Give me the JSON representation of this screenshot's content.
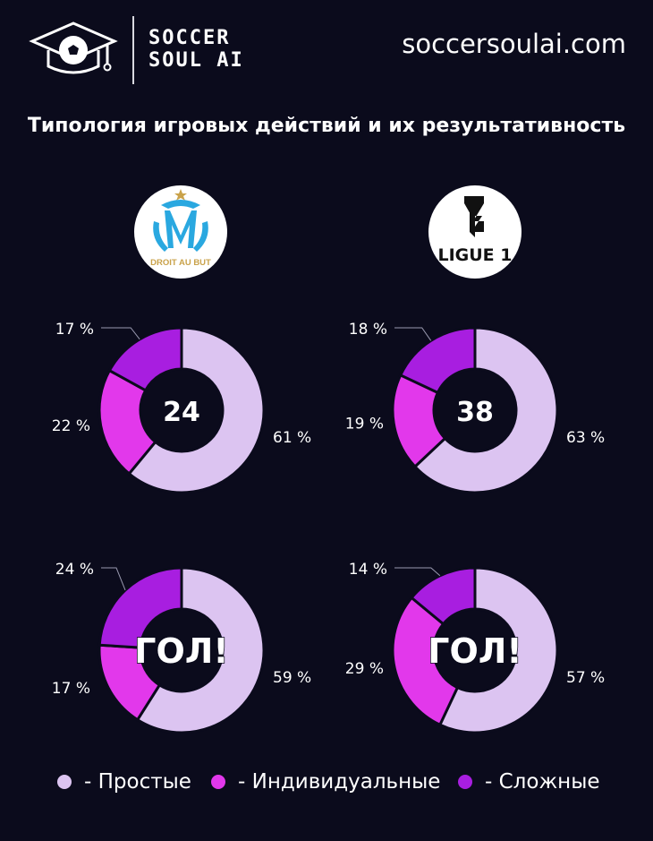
{
  "header": {
    "brand_line1": "SOCCER",
    "brand_line2": "SOUL AI",
    "site": "soccersoulai.com",
    "logo_icon": "graduation-cap-ball-icon"
  },
  "title": "Типология игровых действий и их результативность",
  "teams": [
    {
      "name": "Marseille",
      "badge_icon": "marseille-crest-icon",
      "badge_text": "DROIT AU BUT"
    },
    {
      "name": "Ligue 1",
      "badge_icon": "ligue1-logo-icon",
      "badge_text": "LIGUE 1"
    }
  ],
  "colors": {
    "simple": "#dcc4f1",
    "individual": "#e238eb",
    "complex": "#a81ee0",
    "background": "#0b0b1c"
  },
  "legend": [
    {
      "label": "- Простые",
      "color": "#dcc4f1"
    },
    {
      "label": "- Индивидуальные",
      "color": "#e238eb"
    },
    {
      "label": "- Сложные",
      "color": "#a81ee0"
    }
  ],
  "chart_data": [
    {
      "type": "pie",
      "center_label": "24",
      "categories": [
        "Простые",
        "Индивидуальные",
        "Сложные"
      ],
      "values": [
        61,
        22,
        17
      ],
      "labels": [
        "61 %",
        "22 %",
        "17 %"
      ]
    },
    {
      "type": "pie",
      "center_label": "38",
      "categories": [
        "Простые",
        "Индивидуальные",
        "Сложные"
      ],
      "values": [
        63,
        19,
        18
      ],
      "labels": [
        "63 %",
        "19 %",
        "18 %"
      ]
    },
    {
      "type": "pie",
      "center_label": "ГОЛ!",
      "categories": [
        "Простые",
        "Индивидуальные",
        "Сложные"
      ],
      "values": [
        59,
        17,
        24
      ],
      "labels": [
        "59 %",
        "17 %",
        "24 %"
      ]
    },
    {
      "type": "pie",
      "center_label": "ГОЛ!",
      "categories": [
        "Простые",
        "Индивидуальные",
        "Сложные"
      ],
      "values": [
        57,
        29,
        14
      ],
      "labels": [
        "57 %",
        "29 %",
        "14 %"
      ]
    }
  ]
}
